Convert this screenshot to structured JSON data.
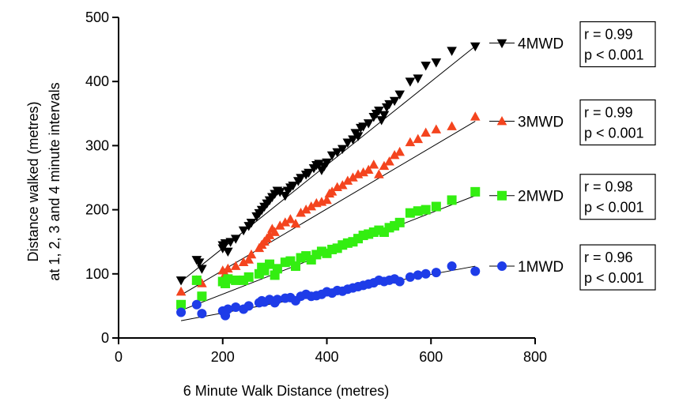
{
  "chart_data": {
    "type": "scatter",
    "xlabel": "6 Minute Walk Distance (metres)",
    "ylabel_lines": [
      "Distance walked (metres)",
      "at 1, 2, 3 and 4 minute intervals"
    ],
    "xlim": [
      0,
      800
    ],
    "ylim": [
      0,
      500
    ],
    "xticks": [
      0,
      200,
      400,
      600,
      800
    ],
    "yticks": [
      0,
      100,
      200,
      300,
      400,
      500
    ],
    "grid": false,
    "legend_placement": "right",
    "series": [
      {
        "name": "4MWD",
        "marker": "triangle-down",
        "color": "#000000",
        "stats": [
          "r = 0.99",
          "p < 0.001"
        ],
        "fit": [
          [
            120,
            88
          ],
          [
            685,
            455
          ]
        ],
        "points": [
          [
            120,
            90
          ],
          [
            150,
            122
          ],
          [
            155,
            118
          ],
          [
            160,
            108
          ],
          [
            200,
            145
          ],
          [
            200,
            140
          ],
          [
            205,
            148
          ],
          [
            210,
            135
          ],
          [
            215,
            150
          ],
          [
            225,
            155
          ],
          [
            240,
            168
          ],
          [
            250,
            175
          ],
          [
            255,
            180
          ],
          [
            265,
            190
          ],
          [
            270,
            195
          ],
          [
            275,
            200
          ],
          [
            280,
            205
          ],
          [
            285,
            210
          ],
          [
            290,
            215
          ],
          [
            295,
            220
          ],
          [
            300,
            225
          ],
          [
            305,
            230
          ],
          [
            310,
            228
          ],
          [
            320,
            222
          ],
          [
            325,
            230
          ],
          [
            330,
            235
          ],
          [
            335,
            238
          ],
          [
            345,
            245
          ],
          [
            350,
            250
          ],
          [
            360,
            255
          ],
          [
            365,
            258
          ],
          [
            375,
            265
          ],
          [
            380,
            270
          ],
          [
            385,
            272
          ],
          [
            390,
            262
          ],
          [
            395,
            268
          ],
          [
            400,
            274
          ],
          [
            410,
            285
          ],
          [
            420,
            290
          ],
          [
            430,
            295
          ],
          [
            440,
            305
          ],
          [
            450,
            310
          ],
          [
            455,
            320
          ],
          [
            460,
            315
          ],
          [
            465,
            328
          ],
          [
            470,
            330
          ],
          [
            480,
            335
          ],
          [
            490,
            345
          ],
          [
            495,
            350
          ],
          [
            500,
            355
          ],
          [
            505,
            340
          ],
          [
            510,
            348
          ],
          [
            515,
            360
          ],
          [
            520,
            365
          ],
          [
            530,
            370
          ],
          [
            540,
            380
          ],
          [
            560,
            400
          ],
          [
            575,
            405
          ],
          [
            590,
            425
          ],
          [
            610,
            430
          ],
          [
            640,
            448
          ],
          [
            685,
            455
          ]
        ]
      },
      {
        "name": "3MWD",
        "marker": "triangle-up",
        "color": "#f4441e",
        "stats": [
          "r = 0.99",
          "p < 0.001"
        ],
        "fit": [
          [
            120,
            67
          ],
          [
            685,
            338
          ]
        ],
        "points": [
          [
            120,
            72
          ],
          [
            150,
            90
          ],
          [
            160,
            85
          ],
          [
            200,
            105
          ],
          [
            205,
            100
          ],
          [
            210,
            108
          ],
          [
            225,
            112
          ],
          [
            240,
            118
          ],
          [
            250,
            122
          ],
          [
            255,
            130
          ],
          [
            270,
            140
          ],
          [
            275,
            145
          ],
          [
            280,
            150
          ],
          [
            285,
            155
          ],
          [
            290,
            160
          ],
          [
            295,
            170
          ],
          [
            300,
            165
          ],
          [
            310,
            175
          ],
          [
            320,
            180
          ],
          [
            330,
            185
          ],
          [
            340,
            178
          ],
          [
            350,
            195
          ],
          [
            360,
            200
          ],
          [
            370,
            205
          ],
          [
            380,
            210
          ],
          [
            390,
            212
          ],
          [
            400,
            215
          ],
          [
            405,
            225
          ],
          [
            410,
            228
          ],
          [
            420,
            235
          ],
          [
            430,
            238
          ],
          [
            440,
            245
          ],
          [
            450,
            250
          ],
          [
            460,
            255
          ],
          [
            470,
            258
          ],
          [
            480,
            262
          ],
          [
            490,
            270
          ],
          [
            500,
            255
          ],
          [
            510,
            268
          ],
          [
            520,
            275
          ],
          [
            530,
            285
          ],
          [
            540,
            290
          ],
          [
            560,
            305
          ],
          [
            575,
            310
          ],
          [
            590,
            320
          ],
          [
            610,
            325
          ],
          [
            640,
            330
          ],
          [
            685,
            345
          ]
        ]
      },
      {
        "name": "2MWD",
        "marker": "square",
        "color": "#33ee11",
        "stats": [
          "r = 0.98",
          "p < 0.001"
        ],
        "fit": [
          [
            120,
            43
          ],
          [
            685,
            222
          ]
        ],
        "points": [
          [
            120,
            52
          ],
          [
            150,
            90
          ],
          [
            160,
            65
          ],
          [
            200,
            88
          ],
          [
            205,
            85
          ],
          [
            210,
            92
          ],
          [
            225,
            90
          ],
          [
            240,
            90
          ],
          [
            250,
            95
          ],
          [
            270,
            100
          ],
          [
            275,
            110
          ],
          [
            280,
            105
          ],
          [
            290,
            115
          ],
          [
            300,
            98
          ],
          [
            305,
            108
          ],
          [
            320,
            118
          ],
          [
            330,
            120
          ],
          [
            340,
            112
          ],
          [
            350,
            125
          ],
          [
            360,
            128
          ],
          [
            370,
            122
          ],
          [
            380,
            130
          ],
          [
            390,
            135
          ],
          [
            400,
            132
          ],
          [
            410,
            138
          ],
          [
            420,
            140
          ],
          [
            430,
            145
          ],
          [
            440,
            148
          ],
          [
            450,
            150
          ],
          [
            460,
            155
          ],
          [
            470,
            160
          ],
          [
            480,
            162
          ],
          [
            490,
            165
          ],
          [
            500,
            168
          ],
          [
            510,
            165
          ],
          [
            520,
            172
          ],
          [
            530,
            175
          ],
          [
            540,
            180
          ],
          [
            560,
            195
          ],
          [
            575,
            198
          ],
          [
            590,
            200
          ],
          [
            610,
            205
          ],
          [
            640,
            215
          ],
          [
            685,
            228
          ]
        ]
      },
      {
        "name": "1MWD",
        "marker": "circle",
        "color": "#1e3ce8",
        "stats": [
          "r = 0.96",
          "p < 0.001"
        ],
        "fit": [
          [
            120,
            27
          ],
          [
            685,
            112
          ]
        ],
        "points": [
          [
            120,
            40
          ],
          [
            150,
            52
          ],
          [
            160,
            38
          ],
          [
            200,
            42
          ],
          [
            205,
            35
          ],
          [
            210,
            45
          ],
          [
            225,
            48
          ],
          [
            240,
            45
          ],
          [
            250,
            50
          ],
          [
            270,
            55
          ],
          [
            275,
            58
          ],
          [
            280,
            56
          ],
          [
            290,
            60
          ],
          [
            300,
            55
          ],
          [
            305,
            60
          ],
          [
            320,
            62
          ],
          [
            330,
            63
          ],
          [
            340,
            58
          ],
          [
            350,
            65
          ],
          [
            360,
            68
          ],
          [
            370,
            65
          ],
          [
            380,
            66
          ],
          [
            390,
            68
          ],
          [
            400,
            72
          ],
          [
            410,
            70
          ],
          [
            420,
            74
          ],
          [
            430,
            73
          ],
          [
            440,
            76
          ],
          [
            450,
            78
          ],
          [
            460,
            80
          ],
          [
            470,
            82
          ],
          [
            480,
            84
          ],
          [
            490,
            86
          ],
          [
            500,
            90
          ],
          [
            510,
            88
          ],
          [
            520,
            90
          ],
          [
            530,
            92
          ],
          [
            540,
            88
          ],
          [
            560,
            95
          ],
          [
            575,
            98
          ],
          [
            590,
            100
          ],
          [
            610,
            102
          ],
          [
            640,
            112
          ],
          [
            685,
            104
          ]
        ]
      }
    ]
  }
}
